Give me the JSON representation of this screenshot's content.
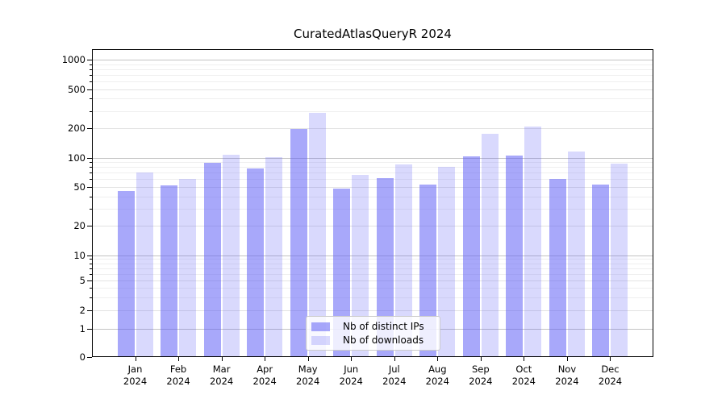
{
  "title": "CuratedAtlasQueryR 2024",
  "chart_data": {
    "type": "bar",
    "title": "CuratedAtlasQueryR 2024",
    "categories": [
      "Jan 2024",
      "Feb 2024",
      "Mar 2024",
      "Apr 2024",
      "May 2024",
      "Jun 2024",
      "Jul 2024",
      "Aug 2024",
      "Sep 2024",
      "Oct 2024",
      "Nov 2024",
      "Dec 2024"
    ],
    "series": [
      {
        "name": "Nb of distinct IPs",
        "color": "rgba(97,97,245,0.55)",
        "values": [
          45,
          52,
          88,
          77,
          198,
          48,
          62,
          53,
          104,
          106,
          60,
          53
        ]
      },
      {
        "name": "Nb of downloads",
        "color": "rgba(97,97,245,0.24)",
        "values": [
          70,
          60,
          107,
          102,
          285,
          66,
          86,
          80,
          177,
          210,
          116,
          87
        ]
      }
    ],
    "xlabel": "",
    "ylabel": "",
    "yscale": "symlog",
    "ylim": [
      0,
      1000
    ],
    "yticks": [
      0,
      1,
      2,
      5,
      10,
      20,
      50,
      100,
      200,
      500,
      1000
    ],
    "grid": true,
    "legend_position": "lower center",
    "spine_color": "#000000",
    "major_grid_color": "#c3c3c3",
    "minor_grid_color": "#efefef"
  }
}
